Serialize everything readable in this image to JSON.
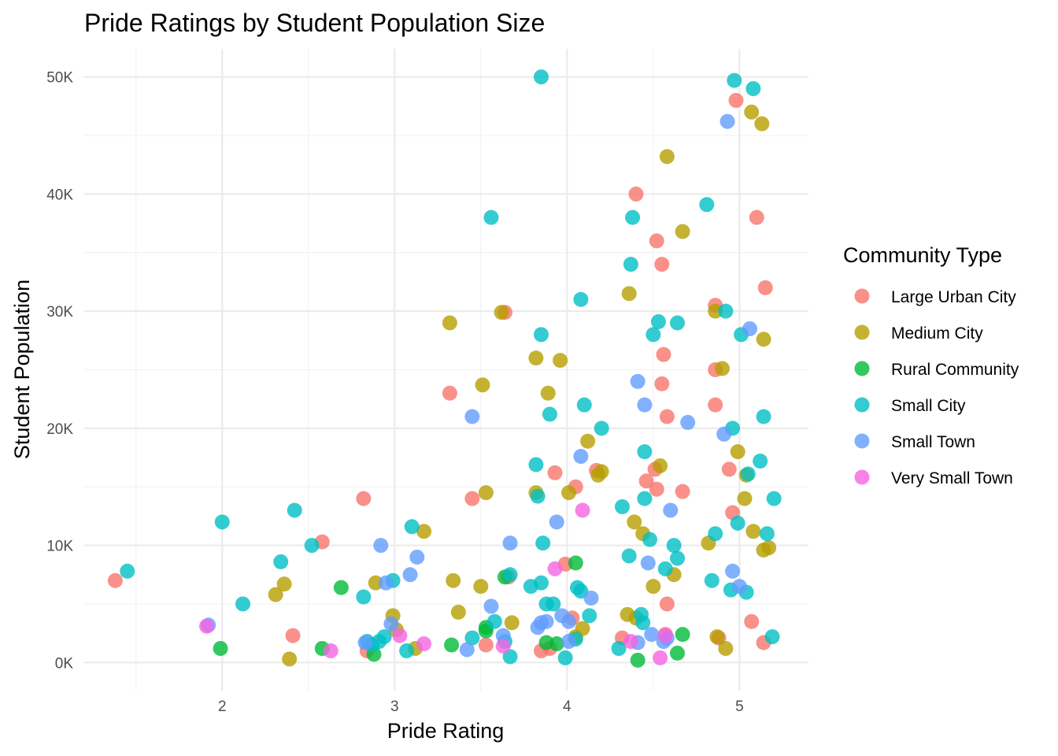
{
  "chart_data": {
    "type": "scatter",
    "title": "Pride Ratings by Student Population Size",
    "xlabel": "Pride Rating",
    "ylabel": "Student Population",
    "xlim": [
      1.2,
      5.4
    ],
    "ylim": [
      -2400,
      52400
    ],
    "x_ticks": [
      2,
      3,
      4,
      5
    ],
    "x_tick_labels": [
      "2",
      "3",
      "4",
      "5"
    ],
    "y_ticks": [
      0,
      10000,
      20000,
      30000,
      40000,
      50000
    ],
    "y_tick_labels": [
      "0K",
      "10K",
      "20K",
      "30K",
      "40K",
      "50K"
    ],
    "grid": true,
    "legend": {
      "title": "Community Type",
      "position": "right"
    },
    "series": [
      {
        "name": "Large Urban City",
        "color": "#F8766D",
        "points": [
          [
            1.38,
            7000
          ],
          [
            2.82,
            14000
          ],
          [
            2.58,
            10300
          ],
          [
            2.41,
            2300
          ],
          [
            2.84,
            1000
          ],
          [
            3.32,
            23000
          ],
          [
            3.45,
            14000
          ],
          [
            3.64,
            29900
          ],
          [
            3.66,
            7300
          ],
          [
            3.53,
            1500
          ],
          [
            3.85,
            1000
          ],
          [
            3.9,
            1200
          ],
          [
            3.93,
            16200
          ],
          [
            3.99,
            8400
          ],
          [
            4.03,
            3800
          ],
          [
            4.05,
            15000
          ],
          [
            4.17,
            16400
          ],
          [
            4.32,
            2100
          ],
          [
            4.4,
            40000
          ],
          [
            4.52,
            36000
          ],
          [
            4.55,
            34000
          ],
          [
            4.56,
            26300
          ],
          [
            4.55,
            23800
          ],
          [
            4.58,
            21000
          ],
          [
            4.46,
            15500
          ],
          [
            4.51,
            16500
          ],
          [
            4.52,
            14800
          ],
          [
            4.67,
            14600
          ],
          [
            4.58,
            5000
          ],
          [
            4.57,
            2400
          ],
          [
            4.86,
            30500
          ],
          [
            4.86,
            25000
          ],
          [
            4.86,
            22000
          ],
          [
            4.94,
            16500
          ],
          [
            4.96,
            12800
          ],
          [
            4.88,
            2100
          ],
          [
            5.1,
            38000
          ],
          [
            5.15,
            32000
          ],
          [
            5.07,
            3500
          ],
          [
            5.14,
            1700
          ],
          [
            4.98,
            48000
          ]
        ]
      },
      {
        "name": "Medium City",
        "color": "#B79F00",
        "points": [
          [
            2.31,
            5800
          ],
          [
            2.36,
            6700
          ],
          [
            2.39,
            300
          ],
          [
            2.89,
            6800
          ],
          [
            2.99,
            4000
          ],
          [
            3.01,
            2800
          ],
          [
            3.12,
            1200
          ],
          [
            3.17,
            11200
          ],
          [
            3.32,
            29000
          ],
          [
            3.34,
            7000
          ],
          [
            3.37,
            4300
          ],
          [
            3.51,
            23700
          ],
          [
            3.53,
            14500
          ],
          [
            3.5,
            6500
          ],
          [
            3.62,
            29900
          ],
          [
            3.68,
            3400
          ],
          [
            3.82,
            26000
          ],
          [
            3.82,
            14500
          ],
          [
            3.89,
            23000
          ],
          [
            3.96,
            25800
          ],
          [
            4.01,
            14500
          ],
          [
            4.05,
            2200
          ],
          [
            4.09,
            2900
          ],
          [
            4.12,
            18900
          ],
          [
            4.18,
            16000
          ],
          [
            4.2,
            16300
          ],
          [
            4.35,
            4100
          ],
          [
            4.36,
            31500
          ],
          [
            4.39,
            12000
          ],
          [
            4.4,
            3800
          ],
          [
            4.44,
            11000
          ],
          [
            4.5,
            6500
          ],
          [
            4.54,
            16800
          ],
          [
            4.58,
            43200
          ],
          [
            4.62,
            7500
          ],
          [
            4.67,
            36800
          ],
          [
            4.82,
            10200
          ],
          [
            4.86,
            30000
          ],
          [
            4.9,
            25100
          ],
          [
            4.92,
            1200
          ],
          [
            4.87,
            2200
          ],
          [
            4.99,
            18000
          ],
          [
            5.03,
            14000
          ],
          [
            5.04,
            16000
          ],
          [
            5.07,
            47000
          ],
          [
            5.08,
            11200
          ],
          [
            5.13,
            46000
          ],
          [
            5.14,
            27600
          ],
          [
            5.14,
            9600
          ],
          [
            5.17,
            9800
          ]
        ]
      },
      {
        "name": "Rural Community",
        "color": "#00BA38",
        "points": [
          [
            1.99,
            1200
          ],
          [
            2.58,
            1200
          ],
          [
            2.69,
            6400
          ],
          [
            2.88,
            700
          ],
          [
            3.33,
            1500
          ],
          [
            3.53,
            3000
          ],
          [
            3.53,
            2700
          ],
          [
            3.64,
            7300
          ],
          [
            3.88,
            1700
          ],
          [
            3.94,
            1600
          ],
          [
            4.05,
            8500
          ],
          [
            4.41,
            200
          ],
          [
            4.64,
            800
          ],
          [
            4.67,
            2400
          ]
        ]
      },
      {
        "name": "Small City",
        "color": "#00BFC4",
        "points": [
          [
            1.45,
            7800
          ],
          [
            2.0,
            12000
          ],
          [
            2.12,
            5000
          ],
          [
            2.34,
            8600
          ],
          [
            2.42,
            13000
          ],
          [
            2.52,
            10000
          ],
          [
            2.82,
            5600
          ],
          [
            2.84,
            1800
          ],
          [
            2.87,
            1500
          ],
          [
            2.91,
            1800
          ],
          [
            2.94,
            2200
          ],
          [
            2.99,
            7000
          ],
          [
            3.07,
            1000
          ],
          [
            3.1,
            11600
          ],
          [
            3.45,
            2100
          ],
          [
            3.56,
            38000
          ],
          [
            3.58,
            3500
          ],
          [
            3.64,
            1800
          ],
          [
            3.67,
            500
          ],
          [
            3.67,
            7500
          ],
          [
            3.79,
            6500
          ],
          [
            3.82,
            16900
          ],
          [
            3.83,
            14200
          ],
          [
            3.85,
            50000
          ],
          [
            3.85,
            28000
          ],
          [
            3.86,
            10200
          ],
          [
            3.85,
            6800
          ],
          [
            3.88,
            5000
          ],
          [
            3.9,
            21200
          ],
          [
            3.92,
            5000
          ],
          [
            3.99,
            400
          ],
          [
            4.05,
            2000
          ],
          [
            4.06,
            6400
          ],
          [
            4.08,
            31000
          ],
          [
            4.08,
            6100
          ],
          [
            4.1,
            22000
          ],
          [
            4.13,
            4000
          ],
          [
            4.2,
            20000
          ],
          [
            4.3,
            1200
          ],
          [
            4.32,
            13300
          ],
          [
            4.36,
            9100
          ],
          [
            4.37,
            34000
          ],
          [
            4.38,
            38000
          ],
          [
            4.43,
            4100
          ],
          [
            4.44,
            3400
          ],
          [
            4.45,
            14000
          ],
          [
            4.45,
            18000
          ],
          [
            4.48,
            10500
          ],
          [
            4.5,
            28000
          ],
          [
            4.53,
            29100
          ],
          [
            4.57,
            8000
          ],
          [
            4.62,
            10000
          ],
          [
            4.64,
            29000
          ],
          [
            4.64,
            8900
          ],
          [
            4.81,
            39100
          ],
          [
            4.84,
            7000
          ],
          [
            4.86,
            11000
          ],
          [
            4.92,
            30000
          ],
          [
            4.95,
            6200
          ],
          [
            4.96,
            20000
          ],
          [
            4.97,
            49700
          ],
          [
            4.99,
            11900
          ],
          [
            5.01,
            28000
          ],
          [
            5.04,
            6000
          ],
          [
            5.05,
            16100
          ],
          [
            5.08,
            49000
          ],
          [
            5.12,
            17200
          ],
          [
            5.14,
            21000
          ],
          [
            5.16,
            11000
          ],
          [
            5.19,
            2200
          ],
          [
            5.2,
            14000
          ]
        ]
      },
      {
        "name": "Small Town",
        "color": "#619CFF",
        "points": [
          [
            1.92,
            3200
          ],
          [
            2.83,
            1700
          ],
          [
            2.92,
            10000
          ],
          [
            2.95,
            6800
          ],
          [
            2.98,
            3300
          ],
          [
            3.09,
            7500
          ],
          [
            3.13,
            9000
          ],
          [
            3.42,
            1100
          ],
          [
            3.45,
            21000
          ],
          [
            3.56,
            4800
          ],
          [
            3.63,
            2300
          ],
          [
            3.67,
            10200
          ],
          [
            3.83,
            3000
          ],
          [
            3.85,
            3400
          ],
          [
            3.88,
            3500
          ],
          [
            3.94,
            12000
          ],
          [
            3.97,
            4000
          ],
          [
            4.01,
            3500
          ],
          [
            4.01,
            1800
          ],
          [
            4.08,
            17600
          ],
          [
            4.14,
            5500
          ],
          [
            4.41,
            24000
          ],
          [
            4.41,
            1700
          ],
          [
            4.45,
            22000
          ],
          [
            4.47,
            8500
          ],
          [
            4.49,
            2400
          ],
          [
            4.56,
            1800
          ],
          [
            4.58,
            2100
          ],
          [
            4.6,
            13000
          ],
          [
            4.7,
            20500
          ],
          [
            4.91,
            19500
          ],
          [
            4.93,
            46200
          ],
          [
            4.96,
            7800
          ],
          [
            5.0,
            6500
          ],
          [
            5.06,
            28500
          ]
        ]
      },
      {
        "name": "Very Small Town",
        "color": "#F564E3",
        "points": [
          [
            1.91,
            3100
          ],
          [
            2.63,
            1000
          ],
          [
            3.03,
            2300
          ],
          [
            3.17,
            1600
          ],
          [
            3.63,
            1400
          ],
          [
            3.93,
            8000
          ],
          [
            4.09,
            13000
          ],
          [
            4.37,
            1800
          ],
          [
            4.54,
            400
          ],
          [
            4.57,
            2300
          ]
        ]
      }
    ]
  }
}
